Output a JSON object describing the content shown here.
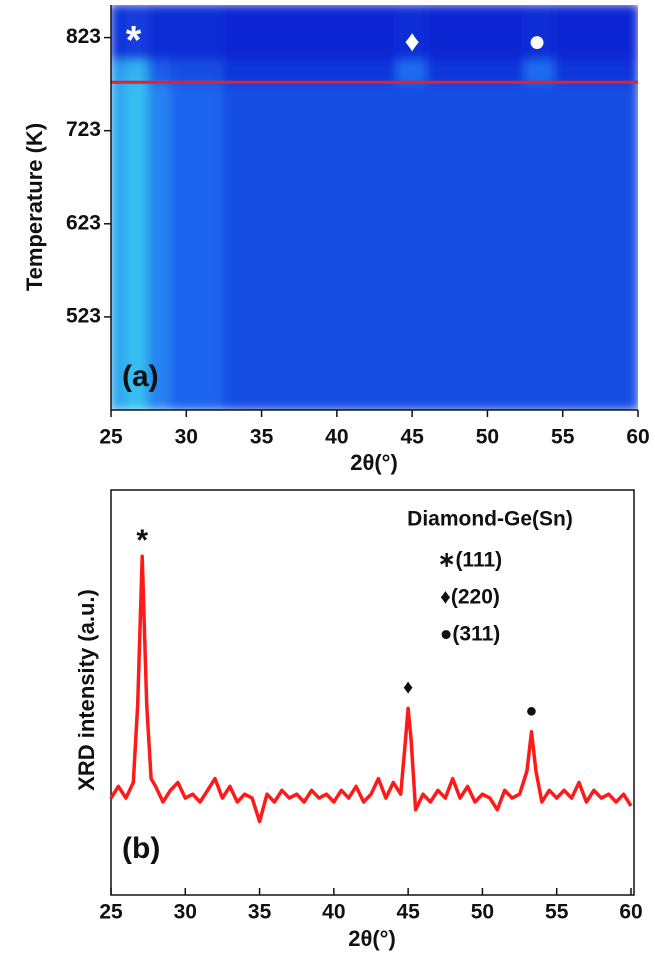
{
  "chart_data": [
    {
      "type": "heatmap",
      "ylabel": "Temperature (K)",
      "xlabel": "2θ(°)",
      "panel_label": "(a)",
      "xlim": [
        25,
        60
      ],
      "xticks": [
        25,
        30,
        35,
        40,
        45,
        50,
        55,
        60
      ],
      "ylim": [
        423,
        858
      ],
      "yticks": [
        523,
        623,
        723,
        823
      ],
      "x_edges": [
        25,
        26,
        27.5,
        29,
        32.5,
        44,
        46,
        52.5,
        54.5,
        60
      ],
      "y_edges": [
        423,
        775,
        800,
        858
      ],
      "z": [
        [
          0.75,
          0.85,
          0.6,
          0.45,
          0.3,
          0.3,
          0.3,
          0.3,
          0.3
        ],
        [
          0.7,
          0.8,
          0.4,
          0.3,
          0.15,
          0.5,
          0.15,
          0.5,
          0.15
        ],
        [
          0.15,
          0.2,
          0.1,
          0.1,
          0.05,
          0.1,
          0.05,
          0.1,
          0.05
        ]
      ],
      "colormap": [
        "#0a1fd0",
        "#1e6cf0",
        "#40e0f0"
      ],
      "ref_line": 775,
      "ref_line_color": "#e8202a",
      "peak_markers": [
        {
          "text": "*",
          "x": 26.5
        },
        {
          "text": "♦",
          "x": 45
        },
        {
          "text": "●",
          "x": 53.3
        }
      ]
    },
    {
      "type": "line",
      "ylabel": "XRD intensity (a.u.)",
      "xlabel": "2θ(°)",
      "panel_label": "(b)",
      "xlim": [
        25,
        60
      ],
      "xticks": [
        25,
        30,
        35,
        40,
        45,
        50,
        55,
        60
      ],
      "ylim": [
        0,
        100
      ],
      "color": "#ff1a1a",
      "x": [
        25,
        25.5,
        26,
        26.5,
        26.8,
        27.1,
        27.4,
        27.7,
        28,
        28.5,
        29,
        29.5,
        30,
        30.5,
        31,
        31.5,
        32,
        32.5,
        33,
        33.5,
        34,
        34.5,
        35,
        35.5,
        36,
        36.5,
        37,
        37.5,
        38,
        38.5,
        39,
        39.5,
        40,
        40.5,
        41,
        41.5,
        42,
        42.5,
        43,
        43.5,
        44,
        44.5,
        44.8,
        45,
        45.2,
        45.5,
        46,
        46.5,
        47,
        47.5,
        48,
        48.5,
        49,
        49.5,
        50,
        50.5,
        51,
        51.5,
        52,
        52.5,
        53,
        53.3,
        53.6,
        54,
        54.5,
        55,
        55.5,
        56,
        56.5,
        57,
        57.5,
        58,
        58.5,
        59,
        59.5,
        60
      ],
      "values": [
        21,
        24,
        21,
        25,
        45,
        83,
        45,
        26,
        24,
        20,
        23,
        25,
        21,
        22,
        20,
        23,
        26,
        21,
        24,
        20,
        22,
        21,
        15,
        22,
        20,
        23,
        21,
        22,
        20,
        23,
        21,
        22,
        20,
        23,
        21,
        24,
        20,
        22,
        26,
        21,
        25,
        22,
        35,
        44,
        36,
        18,
        22,
        20,
        23,
        21,
        26,
        21,
        24,
        20,
        22,
        21,
        18,
        23,
        21,
        22,
        28,
        38,
        28,
        20,
        23,
        21,
        23,
        21,
        25,
        20,
        23,
        21,
        22,
        20,
        22,
        19
      ],
      "peak_markers": [
        {
          "text": "*",
          "x": 27.1
        },
        {
          "text": "♦",
          "x": 45
        },
        {
          "text": "●",
          "x": 53.3
        }
      ],
      "legend_title": "Diamond-Ge(Sn)",
      "legend_entries": [
        "∗(111)",
        "♦(220)",
        "●(311)"
      ]
    }
  ]
}
